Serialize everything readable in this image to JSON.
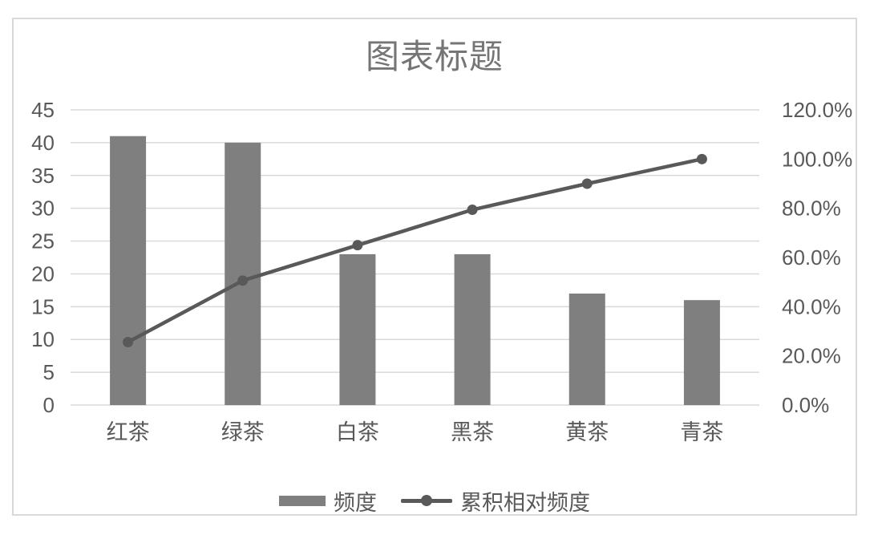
{
  "chart_data": {
    "type": "bar",
    "subtype": "pareto-combo-bar-line",
    "title": "图表标题",
    "categories": [
      "红茶",
      "绿茶",
      "白茶",
      "黑茶",
      "黄茶",
      "青茶"
    ],
    "series": [
      {
        "name": "频度",
        "type": "bar",
        "axis": "left",
        "values": [
          41,
          40,
          23,
          23,
          17,
          16
        ]
      },
      {
        "name": "累积相对频度",
        "type": "line",
        "axis": "right",
        "values_percent": [
          25.6,
          50.6,
          65.0,
          79.4,
          90.0,
          100.0
        ]
      }
    ],
    "left_axis": {
      "min": 0,
      "max": 45,
      "step": 5,
      "tick_labels": [
        "0",
        "5",
        "10",
        "15",
        "20",
        "25",
        "30",
        "35",
        "40",
        "45"
      ]
    },
    "right_axis": {
      "min": 0,
      "max": 120,
      "step": 20,
      "tick_labels": [
        "0.0%",
        "20.0%",
        "40.0%",
        "60.0%",
        "80.0%",
        "100.0%",
        "120.0%"
      ]
    },
    "grid": true,
    "legend_position": "bottom",
    "legend": [
      {
        "label": "频度",
        "marker": "bar-swatch"
      },
      {
        "label": "累积相对频度",
        "marker": "line-dot-swatch"
      }
    ],
    "colors": {
      "bar": "#7f7f7f",
      "line": "#595959",
      "marker": "#595959",
      "gridline": "#d9d9d9",
      "axis_label": "#595959",
      "category_label": "#595959",
      "title": "#757575",
      "frame_border": "#d9d9d9",
      "background": "#ffffff"
    }
  }
}
